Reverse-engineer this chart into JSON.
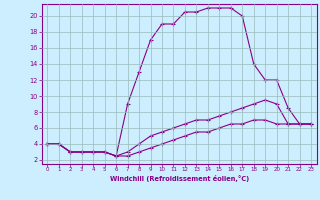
{
  "bg_color": "#cceeff",
  "line_color": "#880088",
  "grid_color": "#99bbbb",
  "xlabel": "Windchill (Refroidissement éolien,°C)",
  "xlim": [
    -0.5,
    23.5
  ],
  "ylim": [
    1.5,
    21.5
  ],
  "xticks": [
    0,
    1,
    2,
    3,
    4,
    5,
    6,
    7,
    8,
    9,
    10,
    11,
    12,
    13,
    14,
    15,
    16,
    17,
    18,
    19,
    20,
    21,
    22,
    23
  ],
  "yticks": [
    2,
    4,
    6,
    8,
    10,
    12,
    14,
    16,
    18,
    20
  ],
  "line1_x": [
    0,
    1,
    2,
    3,
    4,
    5,
    6,
    7,
    8,
    9,
    10,
    11,
    12,
    13,
    14,
    15,
    16,
    17,
    18,
    19,
    20,
    21,
    22,
    23
  ],
  "line1_y": [
    4,
    4,
    3,
    3,
    3,
    3,
    2.5,
    9,
    13,
    17,
    19,
    19,
    20.5,
    20.5,
    21,
    21,
    21,
    20,
    14,
    12,
    12,
    8.5,
    6.5,
    6.5
  ],
  "line2_x": [
    0,
    1,
    2,
    3,
    4,
    5,
    6,
    7,
    8,
    9,
    10,
    11,
    12,
    13,
    14,
    15,
    16,
    17,
    18,
    19,
    20,
    21,
    22,
    23
  ],
  "line2_y": [
    4,
    4,
    3,
    3,
    3,
    3,
    2.5,
    3.0,
    4.0,
    5.0,
    5.5,
    6.0,
    6.5,
    7.0,
    7.0,
    7.5,
    8.0,
    8.5,
    9.0,
    9.5,
    9.0,
    6.5,
    6.5,
    6.5
  ],
  "line3_x": [
    0,
    1,
    2,
    3,
    4,
    5,
    6,
    7,
    8,
    9,
    10,
    11,
    12,
    13,
    14,
    15,
    16,
    17,
    18,
    19,
    20,
    21,
    22,
    23
  ],
  "line3_y": [
    4,
    4,
    3,
    3,
    3,
    3,
    2.5,
    2.5,
    3.0,
    3.5,
    4.0,
    4.5,
    5.0,
    5.5,
    5.5,
    6.0,
    6.5,
    6.5,
    7.0,
    7.0,
    6.5,
    6.5,
    6.5,
    6.5
  ]
}
